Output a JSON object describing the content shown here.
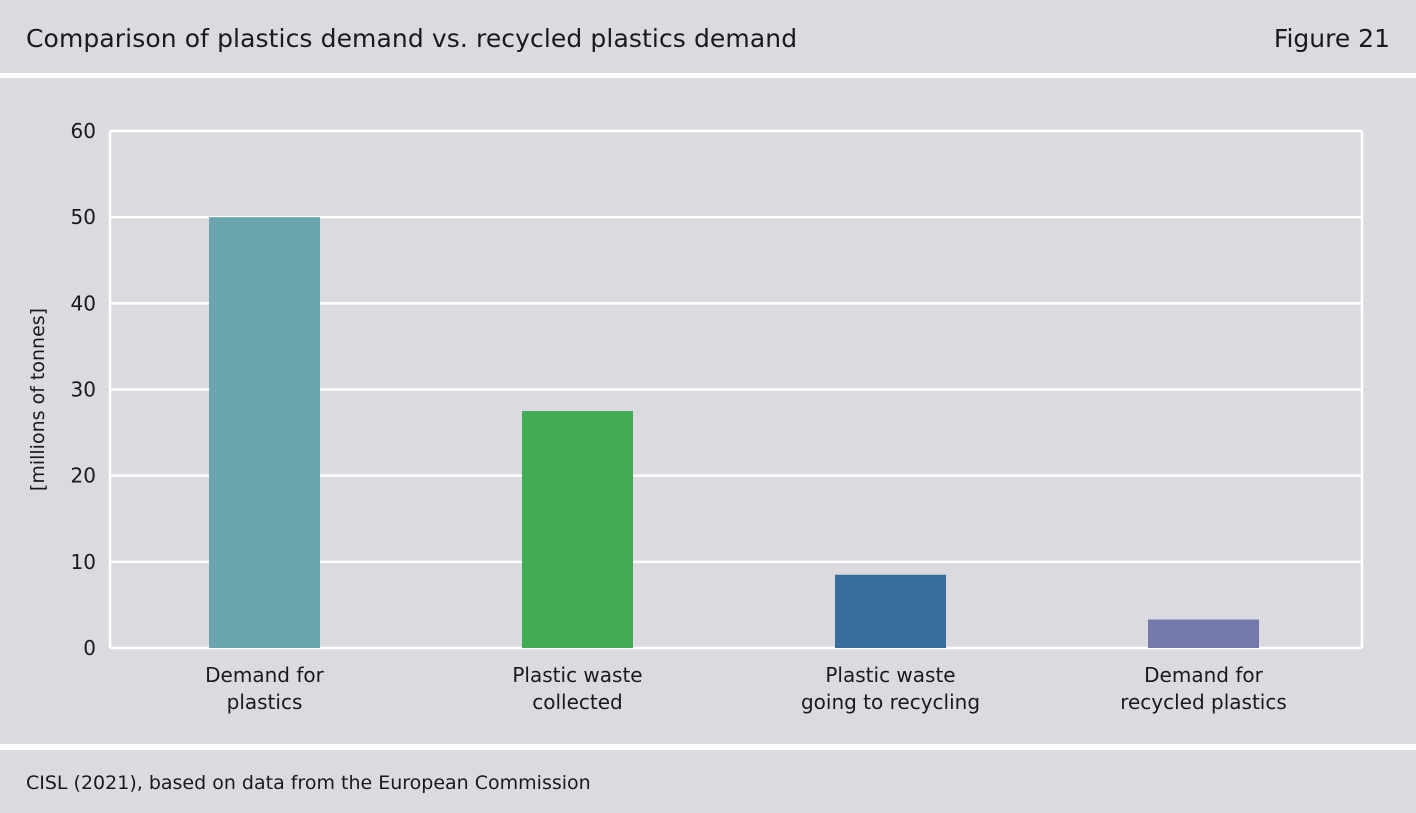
{
  "header": {
    "title": "Comparison of plastics demand vs. recycled plastics demand",
    "figure_label": "Figure 21"
  },
  "footer": {
    "source": "CISL (2021), based on data from the European Commission"
  },
  "chart_data": {
    "type": "bar",
    "title": "Comparison of plastics demand vs. recycled plastics demand",
    "xlabel": "",
    "ylabel": "[millions of tonnes]",
    "ylim": [
      0,
      60
    ],
    "yticks": [
      0,
      10,
      20,
      30,
      40,
      50,
      60
    ],
    "grid": true,
    "categories": [
      [
        "Demand for",
        "plastics"
      ],
      [
        "Plastic waste",
        "collected"
      ],
      [
        "Plastic waste",
        "going to recycling"
      ],
      [
        "Demand for",
        "recycled plastics"
      ]
    ],
    "values": [
      50,
      27.5,
      8.5,
      3.3
    ],
    "colors": [
      "#6ba5b0",
      "#41ab55",
      "#366d9a",
      "#737aab"
    ],
    "gridline_color": "#ffffff",
    "axis_color": "#ffffff"
  }
}
